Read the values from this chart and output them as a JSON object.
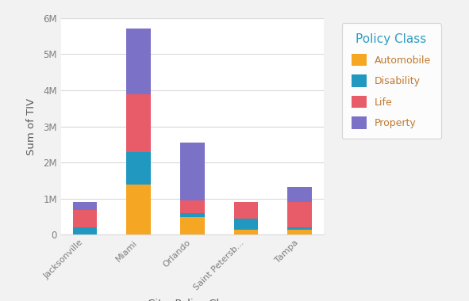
{
  "cities": [
    "Jacksonville",
    "Miami",
    "Orlando",
    "Saint Petersb...",
    "Tampa"
  ],
  "automobile": [
    0,
    1400000,
    500000,
    150000,
    150000
  ],
  "disability": [
    200000,
    900000,
    100000,
    300000,
    50000
  ],
  "life": [
    480000,
    1600000,
    350000,
    450000,
    700000
  ],
  "property": [
    220000,
    1800000,
    1600000,
    0,
    430000
  ],
  "colors": {
    "Automobile": "#F5A623",
    "Disability": "#2098C0",
    "Life": "#E85C6A",
    "Property": "#7B72C8"
  },
  "xlabel": "City, Policy Class",
  "ylabel": "Sum of TIV",
  "legend_title": "Policy Class",
  "bg_color": "#F2F2F2",
  "plot_bg_color": "#FFFFFF",
  "grid_color": "#D9D9D9",
  "axis_label_color": "#595959",
  "tick_color": "#7F7F7F",
  "legend_title_color": "#2E9EC4",
  "legend_text_color": "#C07A30",
  "ylim_max": 6000000,
  "ytick_step": 1000000,
  "bar_width": 0.45
}
